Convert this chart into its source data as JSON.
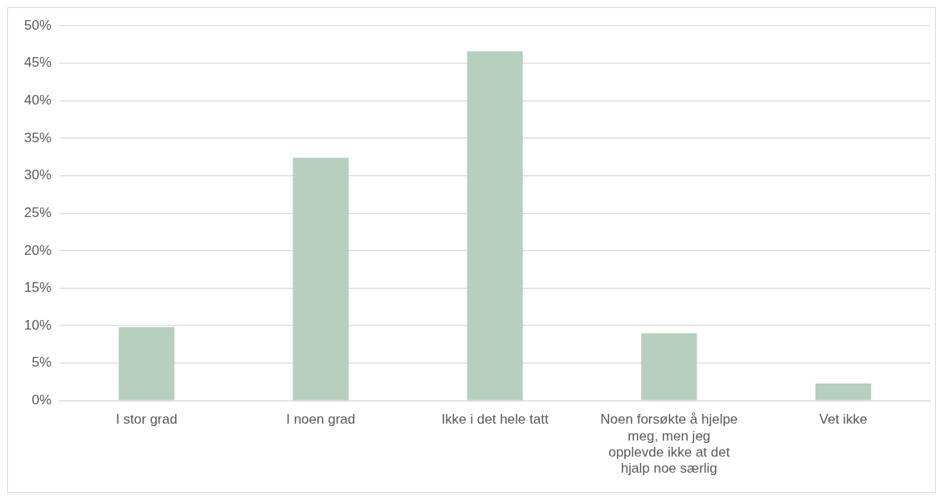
{
  "chart_data": {
    "type": "bar",
    "categories": [
      "I stor grad",
      "I noen grad",
      "Ikke i det hele tatt",
      "Noen forsøkte å hjelpe meg, men jeg opplevde ikke at det hjalp noe særlig",
      "Vet ikke"
    ],
    "values": [
      9.8,
      32.4,
      46.6,
      9.0,
      2.3
    ],
    "color": "#b6cfbe",
    "ylim": [
      0,
      50
    ],
    "yticks": [
      {
        "value": 0,
        "label": "0%"
      },
      {
        "value": 5,
        "label": "5%"
      },
      {
        "value": 10,
        "label": "10%"
      },
      {
        "value": 15,
        "label": "15%"
      },
      {
        "value": 20,
        "label": "20%"
      },
      {
        "value": 25,
        "label": "25%"
      },
      {
        "value": 30,
        "label": "30%"
      },
      {
        "value": 35,
        "label": "35%"
      },
      {
        "value": 40,
        "label": "40%"
      },
      {
        "value": 45,
        "label": "45%"
      },
      {
        "value": 50,
        "label": "50%"
      }
    ],
    "grid": "y"
  }
}
